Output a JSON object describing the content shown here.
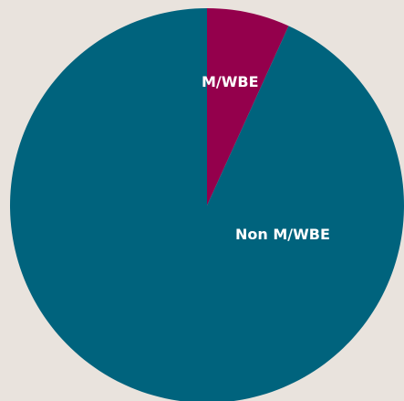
{
  "chart_data": {
    "type": "pie",
    "slices": [
      {
        "label": "M/WBE",
        "value": 6.8,
        "color": "#94004c"
      },
      {
        "label": "Non M/WBE",
        "value": 93.2,
        "color": "#00637d"
      }
    ],
    "start_angle_deg": 0,
    "direction": "clockwise",
    "legend": "none"
  },
  "colors": {
    "background": "#e9e3dd",
    "label_text": "#ffffff"
  }
}
